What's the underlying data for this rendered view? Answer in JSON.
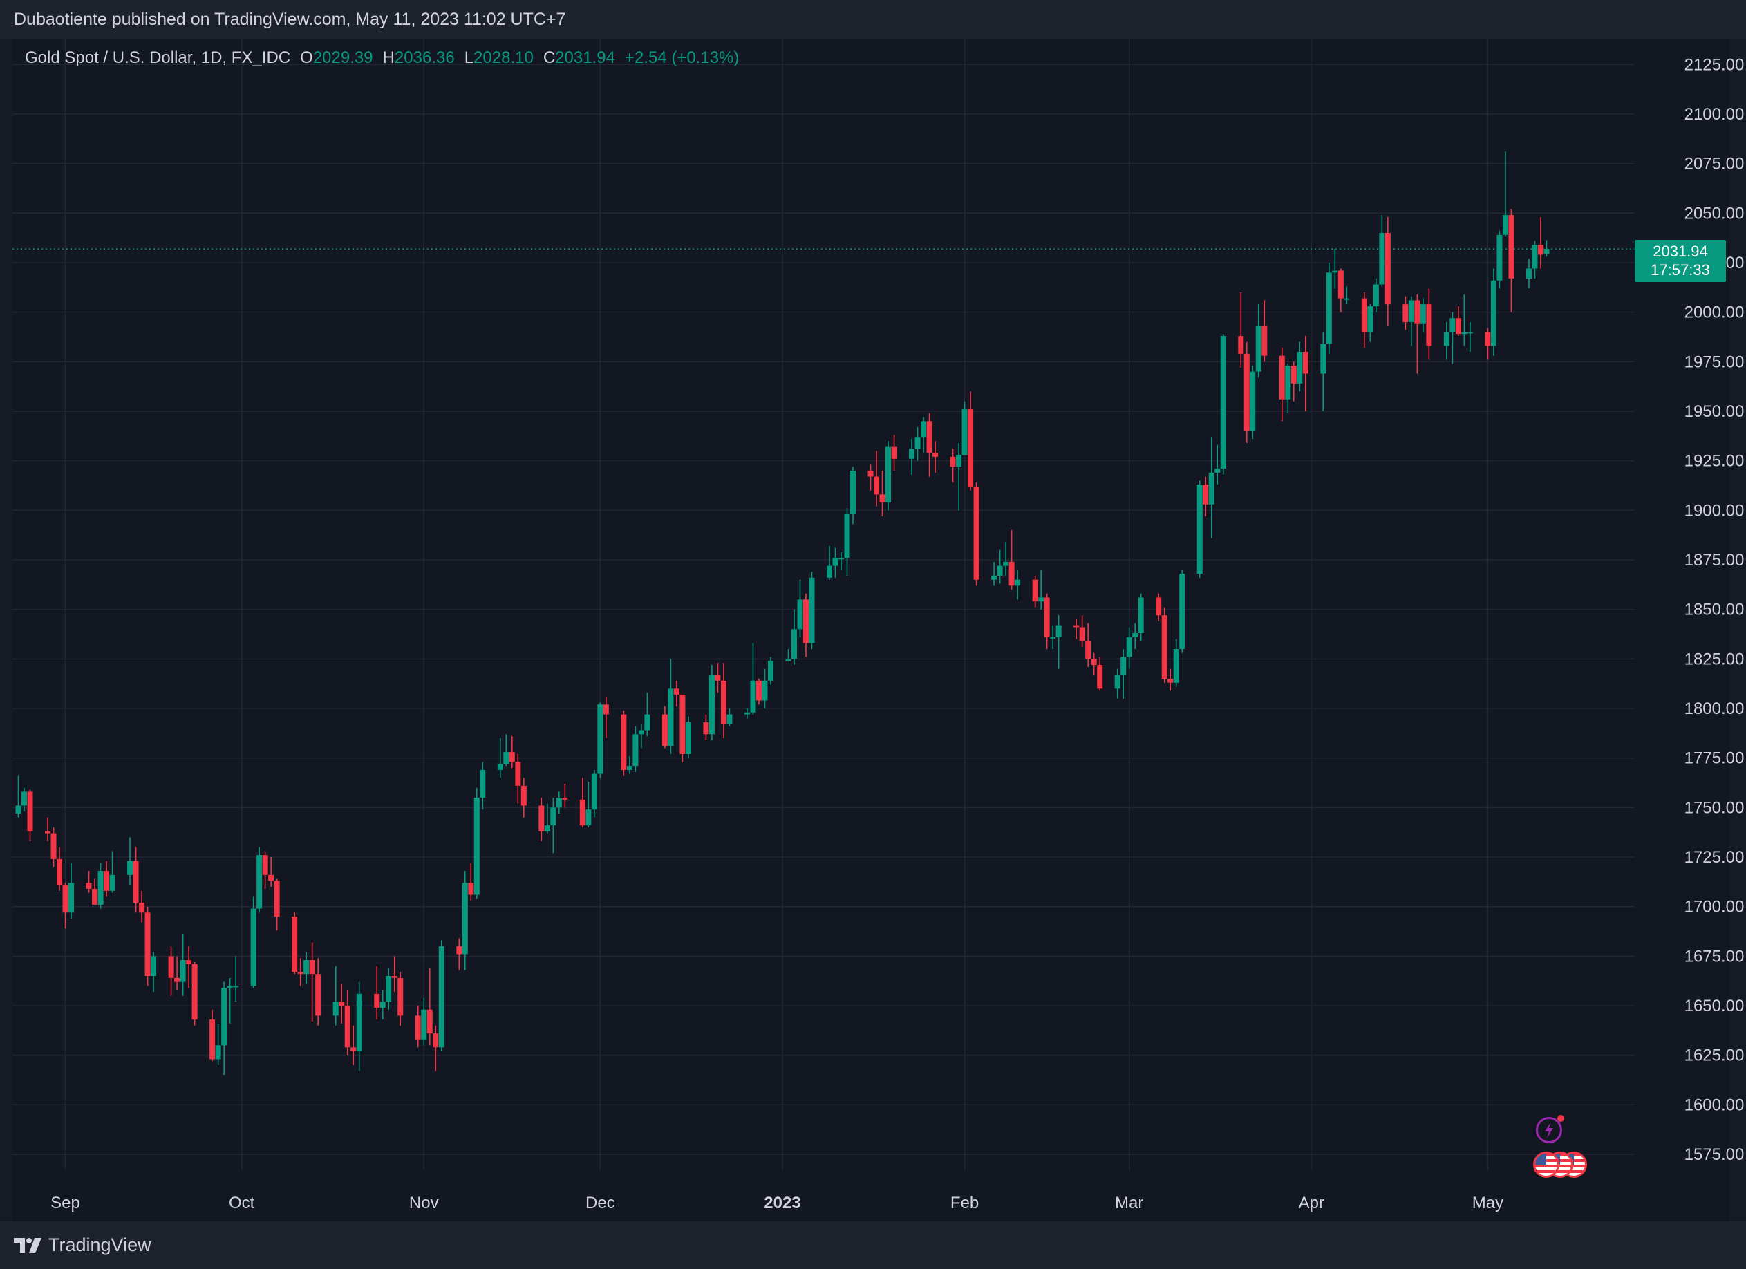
{
  "header": {
    "published_by": "Dubaotiente published on TradingView.com, May 11, 2023 11:02 UTC+7"
  },
  "legend": {
    "symbol": "Gold Spot / U.S. Dollar, 1D, FX_IDC",
    "o_label": "O",
    "o_value": "2029.39",
    "h_label": "H",
    "h_value": "2036.36",
    "l_label": "L",
    "l_value": "2028.10",
    "c_label": "C",
    "c_value": "2031.94",
    "change": "+2.54 (+0.13%)"
  },
  "price_tag": {
    "price": "2031.94",
    "countdown": "17:57:33"
  },
  "footer": {
    "brand": "TradingView"
  },
  "colors": {
    "up": "#089981",
    "down": "#f23645",
    "bg": "#131722",
    "grid": "#232733",
    "text": "#d1d4dc"
  },
  "icons": [
    "tradingview-logo-icon",
    "flash-event-icon",
    "us-flag-icon"
  ],
  "chart_data": {
    "type": "candlestick",
    "title": "Gold Spot / U.S. Dollar, 1D, FX_IDC",
    "ylim": [
      1567,
      2138
    ],
    "yticks": [
      "2125.00",
      "2100.00",
      "2075.00",
      "2050.00",
      "2025.00",
      "2000.00",
      "1975.00",
      "1950.00",
      "1925.00",
      "1900.00",
      "1875.00",
      "1850.00",
      "1825.00",
      "1800.00",
      "1775.00",
      "1750.00",
      "1725.00",
      "1700.00",
      "1675.00",
      "1650.00",
      "1625.00",
      "1600.00",
      "1575.00"
    ],
    "xticks": [
      {
        "label": "Sep",
        "date": "2022-09-01"
      },
      {
        "label": "Oct",
        "date": "2022-10-01"
      },
      {
        "label": "Nov",
        "date": "2022-11-01"
      },
      {
        "label": "Dec",
        "date": "2022-12-01"
      },
      {
        "label": "2023",
        "date": "2023-01-01"
      },
      {
        "label": "Feb",
        "date": "2023-02-01"
      },
      {
        "label": "Mar",
        "date": "2023-03-01"
      },
      {
        "label": "Apr",
        "date": "2023-04-01"
      },
      {
        "label": "May",
        "date": "2023-05-01"
      }
    ],
    "last_price": 2031.94,
    "grid": true,
    "candles": [
      [
        "2022-08-24",
        1747,
        1766,
        1745,
        1751
      ],
      [
        "2022-08-25",
        1751,
        1760,
        1748,
        1758
      ],
      [
        "2022-08-26",
        1758,
        1759,
        1733,
        1738
      ],
      [
        "2022-08-29",
        1738,
        1745,
        1733,
        1737
      ],
      [
        "2022-08-30",
        1737,
        1740,
        1720,
        1724
      ],
      [
        "2022-08-31",
        1724,
        1730,
        1708,
        1711
      ],
      [
        "2022-09-01",
        1711,
        1712,
        1689,
        1697
      ],
      [
        "2022-09-02",
        1697,
        1722,
        1694,
        1712
      ],
      [
        "2022-09-05",
        1712,
        1718,
        1707,
        1709
      ],
      [
        "2022-09-06",
        1709,
        1714,
        1701,
        1701
      ],
      [
        "2022-09-07",
        1701,
        1722,
        1699,
        1718
      ],
      [
        "2022-09-08",
        1718,
        1723,
        1705,
        1708
      ],
      [
        "2022-09-09",
        1708,
        1728,
        1707,
        1716
      ],
      [
        "2022-09-12",
        1716,
        1735,
        1711,
        1723
      ],
      [
        "2022-09-13",
        1723,
        1730,
        1697,
        1702
      ],
      [
        "2022-09-14",
        1702,
        1708,
        1692,
        1697
      ],
      [
        "2022-09-15",
        1697,
        1700,
        1660,
        1665
      ],
      [
        "2022-09-16",
        1665,
        1677,
        1657,
        1675
      ],
      [
        "2022-09-19",
        1675,
        1680,
        1655,
        1664
      ],
      [
        "2022-09-20",
        1664,
        1675,
        1658,
        1662
      ],
      [
        "2022-09-21",
        1662,
        1686,
        1655,
        1673
      ],
      [
        "2022-09-22",
        1673,
        1680,
        1659,
        1671
      ],
      [
        "2022-09-23",
        1671,
        1672,
        1640,
        1643
      ],
      [
        "2022-09-26",
        1643,
        1648,
        1622,
        1623
      ],
      [
        "2022-09-27",
        1623,
        1641,
        1620,
        1630
      ],
      [
        "2022-09-28",
        1630,
        1662,
        1615,
        1659
      ],
      [
        "2022-09-29",
        1659,
        1664,
        1641,
        1660
      ],
      [
        "2022-09-30",
        1660,
        1675,
        1652,
        1660
      ],
      [
        "2022-10-03",
        1660,
        1705,
        1659,
        1699
      ],
      [
        "2022-10-04",
        1699,
        1730,
        1697,
        1726
      ],
      [
        "2022-10-05",
        1726,
        1728,
        1709,
        1716
      ],
      [
        "2022-10-06",
        1716,
        1725,
        1710,
        1713
      ],
      [
        "2022-10-07",
        1713,
        1714,
        1688,
        1695
      ],
      [
        "2022-10-10",
        1695,
        1697,
        1666,
        1667
      ],
      [
        "2022-10-11",
        1667,
        1674,
        1660,
        1666
      ],
      [
        "2022-10-12",
        1666,
        1677,
        1661,
        1673
      ],
      [
        "2022-10-13",
        1673,
        1682,
        1642,
        1666
      ],
      [
        "2022-10-14",
        1666,
        1674,
        1640,
        1645
      ],
      [
        "2022-10-17",
        1645,
        1670,
        1640,
        1652
      ],
      [
        "2022-10-18",
        1652,
        1661,
        1641,
        1650
      ],
      [
        "2022-10-19",
        1650,
        1658,
        1625,
        1629
      ],
      [
        "2022-10-20",
        1629,
        1640,
        1620,
        1627
      ],
      [
        "2022-10-21",
        1627,
        1662,
        1617,
        1656
      ],
      [
        "2022-10-24",
        1656,
        1670,
        1643,
        1649
      ],
      [
        "2022-10-25",
        1649,
        1658,
        1643,
        1652
      ],
      [
        "2022-10-26",
        1652,
        1669,
        1648,
        1665
      ],
      [
        "2022-10-27",
        1665,
        1675,
        1657,
        1664
      ],
      [
        "2022-10-28",
        1664,
        1667,
        1640,
        1645
      ],
      [
        "2022-10-31",
        1645,
        1650,
        1629,
        1633
      ],
      [
        "2022-11-01",
        1633,
        1654,
        1630,
        1648
      ],
      [
        "2022-11-02",
        1648,
        1669,
        1630,
        1636
      ],
      [
        "2022-11-03",
        1636,
        1640,
        1617,
        1629
      ],
      [
        "2022-11-04",
        1629,
        1683,
        1627,
        1680
      ],
      [
        "2022-11-07",
        1680,
        1684,
        1668,
        1676
      ],
      [
        "2022-11-08",
        1676,
        1718,
        1668,
        1712
      ],
      [
        "2022-11-09",
        1712,
        1722,
        1703,
        1706
      ],
      [
        "2022-11-10",
        1706,
        1760,
        1704,
        1755
      ],
      [
        "2022-11-11",
        1755,
        1773,
        1749,
        1769
      ],
      [
        "2022-11-14",
        1769,
        1785,
        1765,
        1772
      ],
      [
        "2022-11-15",
        1772,
        1787,
        1771,
        1778
      ],
      [
        "2022-11-16",
        1778,
        1786,
        1770,
        1773
      ],
      [
        "2022-11-17",
        1773,
        1777,
        1752,
        1761
      ],
      [
        "2022-11-18",
        1761,
        1765,
        1745,
        1751
      ],
      [
        "2022-11-21",
        1751,
        1755,
        1733,
        1738
      ],
      [
        "2022-11-22",
        1738,
        1752,
        1737,
        1741
      ],
      [
        "2022-11-23",
        1741,
        1755,
        1727,
        1750
      ],
      [
        "2022-11-24",
        1750,
        1758,
        1747,
        1755
      ],
      [
        "2022-11-25",
        1755,
        1762,
        1750,
        1754
      ],
      [
        "2022-11-28",
        1754,
        1765,
        1740,
        1741
      ],
      [
        "2022-11-29",
        1741,
        1763,
        1740,
        1749
      ],
      [
        "2022-11-30",
        1749,
        1769,
        1745,
        1767
      ],
      [
        "2022-12-01",
        1767,
        1803,
        1765,
        1802
      ],
      [
        "2022-12-02",
        1802,
        1806,
        1785,
        1797
      ],
      [
        "2022-12-05",
        1797,
        1799,
        1766,
        1769
      ],
      [
        "2022-12-06",
        1769,
        1776,
        1767,
        1771
      ],
      [
        "2022-12-07",
        1771,
        1791,
        1768,
        1787
      ],
      [
        "2022-12-08",
        1787,
        1792,
        1780,
        1789
      ],
      [
        "2022-12-09",
        1789,
        1808,
        1786,
        1797
      ],
      [
        "2022-12-12",
        1797,
        1801,
        1780,
        1781
      ],
      [
        "2022-12-13",
        1781,
        1825,
        1777,
        1810
      ],
      [
        "2022-12-14",
        1810,
        1814,
        1801,
        1807
      ],
      [
        "2022-12-15",
        1807,
        1807,
        1773,
        1777
      ],
      [
        "2022-12-16",
        1777,
        1796,
        1775,
        1793
      ],
      [
        "2022-12-19",
        1793,
        1797,
        1784,
        1787
      ],
      [
        "2022-12-20",
        1787,
        1822,
        1784,
        1817
      ],
      [
        "2022-12-21",
        1817,
        1823,
        1808,
        1814
      ],
      [
        "2022-12-22",
        1814,
        1823,
        1785,
        1792
      ],
      [
        "2022-12-23",
        1792,
        1800,
        1791,
        1797
      ],
      [
        "2022-12-26",
        1797,
        1800,
        1795,
        1798
      ],
      [
        "2022-12-27",
        1798,
        1833,
        1797,
        1814
      ],
      [
        "2022-12-28",
        1814,
        1815,
        1802,
        1804
      ],
      [
        "2022-12-29",
        1804,
        1820,
        1800,
        1814
      ],
      [
        "2022-12-30",
        1814,
        1826,
        1812,
        1824
      ],
      [
        "2023-01-02",
        1824,
        1830,
        1824,
        1825
      ],
      [
        "2023-01-03",
        1825,
        1850,
        1822,
        1840
      ],
      [
        "2023-01-04",
        1840,
        1865,
        1836,
        1855
      ],
      [
        "2023-01-05",
        1855,
        1858,
        1826,
        1833
      ],
      [
        "2023-01-06",
        1833,
        1869,
        1830,
        1866
      ],
      [
        "2023-01-09",
        1866,
        1882,
        1865,
        1872
      ],
      [
        "2023-01-10",
        1872,
        1881,
        1866,
        1876
      ],
      [
        "2023-01-11",
        1876,
        1879,
        1870,
        1876
      ],
      [
        "2023-01-12",
        1876,
        1901,
        1867,
        1898
      ],
      [
        "2023-01-13",
        1898,
        1922,
        1893,
        1920
      ],
      [
        "2023-01-16",
        1920,
        1923,
        1910,
        1917
      ],
      [
        "2023-01-17",
        1917,
        1930,
        1902,
        1908
      ],
      [
        "2023-01-18",
        1908,
        1920,
        1897,
        1904
      ],
      [
        "2023-01-19",
        1904,
        1935,
        1900,
        1932
      ],
      [
        "2023-01-20",
        1932,
        1938,
        1920,
        1926
      ],
      [
        "2023-01-23",
        1926,
        1936,
        1918,
        1931
      ],
      [
        "2023-01-24",
        1931,
        1942,
        1925,
        1937
      ],
      [
        "2023-01-25",
        1937,
        1947,
        1929,
        1945
      ],
      [
        "2023-01-26",
        1945,
        1949,
        1917,
        1929
      ],
      [
        "2023-01-27",
        1929,
        1935,
        1919,
        1927
      ],
      [
        "2023-01-30",
        1927,
        1931,
        1914,
        1922
      ],
      [
        "2023-01-31",
        1922,
        1934,
        1900,
        1928
      ],
      [
        "2023-02-01",
        1928,
        1955,
        1928,
        1951
      ],
      [
        "2023-02-02",
        1951,
        1960,
        1910,
        1912
      ],
      [
        "2023-02-03",
        1912,
        1914,
        1862,
        1865
      ],
      [
        "2023-02-06",
        1865,
        1874,
        1862,
        1867
      ],
      [
        "2023-02-07",
        1867,
        1880,
        1863,
        1872
      ],
      [
        "2023-02-08",
        1872,
        1884,
        1867,
        1874
      ],
      [
        "2023-02-09",
        1874,
        1890,
        1860,
        1862
      ],
      [
        "2023-02-10",
        1862,
        1870,
        1855,
        1865
      ],
      [
        "2023-02-13",
        1865,
        1867,
        1851,
        1854
      ],
      [
        "2023-02-14",
        1854,
        1870,
        1850,
        1856
      ],
      [
        "2023-02-15",
        1856,
        1858,
        1830,
        1836
      ],
      [
        "2023-02-16",
        1836,
        1842,
        1830,
        1836
      ],
      [
        "2023-02-17",
        1836,
        1847,
        1820,
        1842
      ],
      [
        "2023-02-20",
        1842,
        1845,
        1835,
        1841
      ],
      [
        "2023-02-21",
        1841,
        1847,
        1831,
        1834
      ],
      [
        "2023-02-22",
        1834,
        1843,
        1821,
        1825
      ],
      [
        "2023-02-23",
        1825,
        1828,
        1817,
        1822
      ],
      [
        "2023-02-24",
        1822,
        1826,
        1809,
        1810
      ],
      [
        "2023-02-27",
        1810,
        1820,
        1805,
        1817
      ],
      [
        "2023-02-28",
        1817,
        1830,
        1805,
        1826
      ],
      [
        "2023-03-01",
        1826,
        1841,
        1820,
        1836
      ],
      [
        "2023-03-02",
        1836,
        1843,
        1830,
        1838
      ],
      [
        "2023-03-03",
        1838,
        1858,
        1834,
        1856
      ],
      [
        "2023-03-06",
        1856,
        1858,
        1844,
        1847
      ],
      [
        "2023-03-07",
        1847,
        1851,
        1813,
        1815
      ],
      [
        "2023-03-08",
        1815,
        1820,
        1809,
        1813
      ],
      [
        "2023-03-09",
        1813,
        1835,
        1811,
        1830
      ],
      [
        "2023-03-10",
        1830,
        1870,
        1828,
        1868
      ],
      [
        "2023-03-13",
        1868,
        1915,
        1866,
        1913
      ],
      [
        "2023-03-14",
        1913,
        1917,
        1897,
        1903
      ],
      [
        "2023-03-15",
        1903,
        1937,
        1886,
        1919
      ],
      [
        "2023-03-16",
        1919,
        1933,
        1913,
        1921
      ],
      [
        "2023-03-17",
        1921,
        1989,
        1918,
        1988
      ],
      [
        "2023-03-20",
        1988,
        2010,
        1972,
        1979
      ],
      [
        "2023-03-21",
        1979,
        1985,
        1934,
        1940
      ],
      [
        "2023-03-22",
        1940,
        1973,
        1936,
        1970
      ],
      [
        "2023-03-23",
        1970,
        2004,
        1967,
        1993
      ],
      [
        "2023-03-24",
        1993,
        2006,
        1975,
        1978
      ],
      [
        "2023-03-27",
        1978,
        1982,
        1945,
        1956
      ],
      [
        "2023-03-28",
        1956,
        1974,
        1949,
        1973
      ],
      [
        "2023-03-29",
        1973,
        1975,
        1955,
        1964
      ],
      [
        "2023-03-30",
        1964,
        1985,
        1960,
        1980
      ],
      [
        "2023-03-31",
        1980,
        1988,
        1950,
        1969
      ],
      [
        "2023-04-03",
        1969,
        1990,
        1950,
        1984
      ],
      [
        "2023-04-04",
        1984,
        2025,
        1979,
        2020
      ],
      [
        "2023-04-05",
        2020,
        2032,
        2012,
        2021
      ],
      [
        "2023-04-06",
        2021,
        2022,
        2000,
        2007
      ],
      [
        "2023-04-07",
        2007,
        2013,
        2004,
        2007
      ],
      [
        "2023-04-10",
        2007,
        2010,
        1982,
        1990
      ],
      [
        "2023-04-11",
        1990,
        2004,
        1985,
        2003
      ],
      [
        "2023-04-12",
        2003,
        2017,
        2000,
        2014
      ],
      [
        "2023-04-13",
        2014,
        2049,
        2013,
        2040
      ],
      [
        "2023-04-14",
        2040,
        2048,
        1993,
        2004
      ],
      [
        "2023-04-17",
        2004,
        2008,
        1991,
        1995
      ],
      [
        "2023-04-18",
        1995,
        2008,
        1983,
        2006
      ],
      [
        "2023-04-19",
        2006,
        2009,
        1969,
        1994
      ],
      [
        "2023-04-20",
        1994,
        2007,
        1990,
        2004
      ],
      [
        "2023-04-21",
        2004,
        2012,
        1976,
        1983
      ],
      [
        "2023-04-24",
        1983,
        1995,
        1976,
        1990
      ],
      [
        "2023-04-25",
        1990,
        2000,
        1974,
        1997
      ],
      [
        "2023-04-26",
        1997,
        2003,
        1988,
        1989
      ],
      [
        "2023-04-27",
        1989,
        2009,
        1983,
        1990
      ],
      [
        "2023-04-28",
        1990,
        1995,
        1980,
        1990
      ],
      [
        "2023-05-01",
        1990,
        1992,
        1976,
        1983
      ],
      [
        "2023-05-02",
        1983,
        2022,
        1978,
        2016
      ],
      [
        "2023-05-03",
        2016,
        2041,
        2012,
        2039
      ],
      [
        "2023-05-04",
        2039,
        2081,
        2038,
        2049
      ],
      [
        "2023-05-05",
        2049,
        2052,
        2000,
        2017
      ],
      [
        "2023-05-08",
        2017,
        2027,
        2012,
        2022
      ],
      [
        "2023-05-09",
        2022,
        2036,
        2017,
        2034
      ],
      [
        "2023-05-10",
        2034,
        2048,
        2022,
        2029
      ],
      [
        "2023-05-11",
        2029.39,
        2036.36,
        2028.1,
        2031.94
      ]
    ]
  }
}
